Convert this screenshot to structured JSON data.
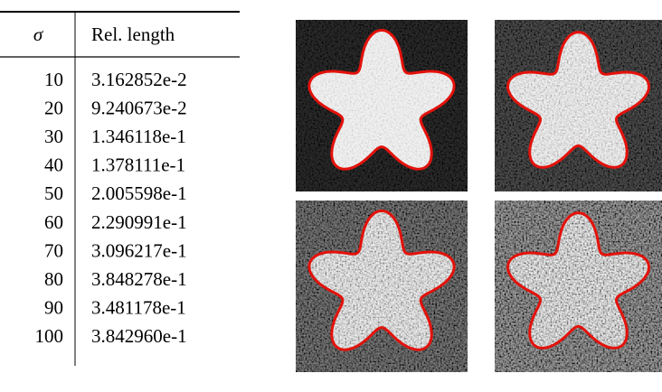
{
  "table": {
    "header": [
      "σ",
      "Rel. length"
    ],
    "rows": [
      [
        10,
        "3.162852e-2"
      ],
      [
        20,
        "9.240673e-2"
      ],
      [
        30,
        "1.346118e-1"
      ],
      [
        40,
        "1.378111e-1"
      ],
      [
        50,
        "2.005598e-1"
      ],
      [
        60,
        "2.290991e-1"
      ],
      [
        70,
        "3.096217e-1"
      ],
      [
        80,
        "3.848278e-1"
      ],
      [
        90,
        "3.481178e-1"
      ],
      [
        100,
        "3.842960e-1"
      ]
    ]
  }
}
